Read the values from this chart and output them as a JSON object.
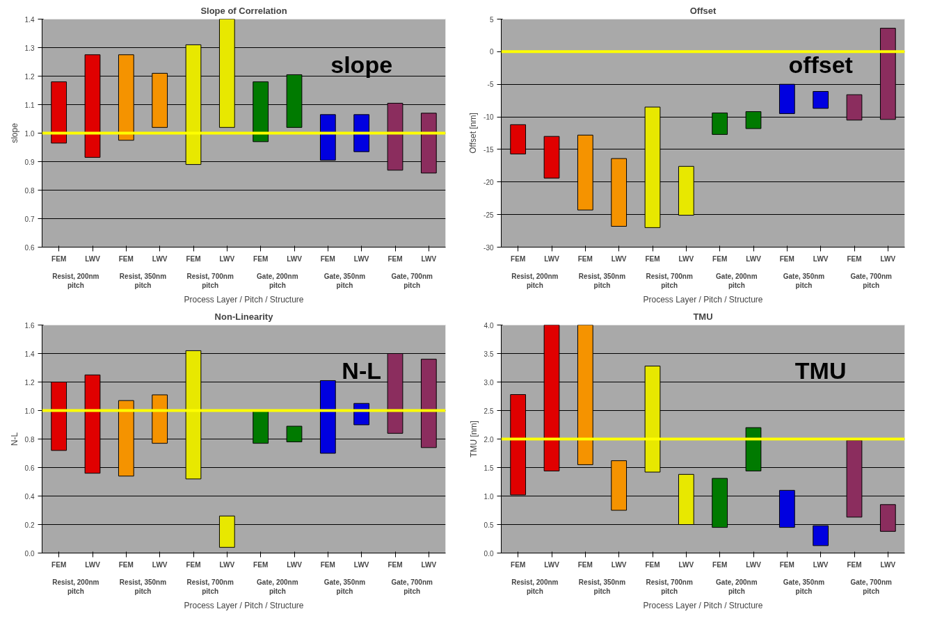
{
  "chart_data": [
    {
      "type": "bar",
      "title": "Slope of Correlation",
      "xlabel": "Process Layer / Pitch / Structure",
      "ylabel": "slope",
      "categories": [
        "FEM",
        "LWV",
        "FEM",
        "LWV",
        "FEM",
        "LWV",
        "FEM",
        "LWV",
        "FEM",
        "LWV",
        "FEM",
        "LWV"
      ],
      "base": [
        0.965,
        0.915,
        0.975,
        1.02,
        0.89,
        1.02,
        0.97,
        1.02,
        0.905,
        0.935,
        0.87,
        0.86
      ],
      "values": [
        0.215,
        0.36,
        0.3,
        0.19,
        0.42,
        0.38,
        0.21,
        0.185,
        0.16,
        0.13,
        0.235,
        0.21
      ],
      "colors": [
        "#e00000",
        "#e00000",
        "#f59300",
        "#f59300",
        "#e8e800",
        "#e8e800",
        "#007a00",
        "#007a00",
        "#0000e0",
        "#0000e0",
        "#8b2d5e",
        "#8b2d5e"
      ],
      "ylim": [
        0.6,
        1.4
      ],
      "yticks": [
        0.6,
        0.7,
        0.8,
        0.9,
        {
          "value": 1,
          "label": "1.0"
        },
        1.1,
        1.2,
        1.3,
        1.4
      ],
      "grid": "y",
      "ref_lines": [
        {
          "axis": "y",
          "value": 1,
          "color": "#ffff00"
        }
      ],
      "annotations": [
        "Resist, 200nm pitch",
        "Resist, 350nm pitch",
        "Resist, 700nm pitch",
        "Gate, 200nm pitch",
        "Gate, 350nm pitch",
        "Gate, 700nm pitch",
        "slope"
      ]
    },
    {
      "type": "bar",
      "title": "Offset",
      "xlabel": "Process Layer / Pitch / Structure",
      "ylabel": "Offset [nm]",
      "categories": [
        "FEM",
        "LWV",
        "FEM",
        "LWV",
        "FEM",
        "LWV",
        "FEM",
        "LWV",
        "FEM",
        "LWV",
        "FEM",
        "LWV"
      ],
      "base": [
        -15.7,
        -19.4,
        -24.3,
        -26.8,
        -27.0,
        -25.1,
        -12.7,
        -11.8,
        -9.5,
        -8.7,
        -10.5,
        -10.4
      ],
      "values": [
        4.5,
        6.4,
        11.5,
        10.4,
        18.5,
        7.5,
        3.3,
        2.6,
        4.5,
        2.6,
        3.9,
        14.0
      ],
      "colors": [
        "#e00000",
        "#e00000",
        "#f59300",
        "#f59300",
        "#e8e800",
        "#e8e800",
        "#007a00",
        "#007a00",
        "#0000e0",
        "#0000e0",
        "#8b2d5e",
        "#8b2d5e"
      ],
      "ylim": [
        -30,
        5
      ],
      "yticks": [
        -30,
        -25,
        -20,
        -15,
        -10,
        -5,
        0,
        5
      ],
      "grid": "y",
      "ref_lines": [
        {
          "axis": "y",
          "value": 0,
          "color": "#ffff00"
        }
      ],
      "annotations": [
        "Resist, 200nm pitch",
        "Resist, 350nm pitch",
        "Resist, 700nm pitch",
        "Gate, 200nm pitch",
        "Gate, 350nm pitch",
        "Gate, 700nm pitch",
        "offset"
      ]
    },
    {
      "type": "bar",
      "title": "Non-Linearity",
      "xlabel": "Process Layer / Pitch / Structure",
      "ylabel": "N-L",
      "categories": [
        "FEM",
        "LWV",
        "FEM",
        "LWV",
        "FEM",
        "LWV",
        "FEM",
        "LWV",
        "FEM",
        "LWV",
        "FEM",
        "LWV"
      ],
      "base": [
        0.72,
        0.56,
        0.54,
        0.77,
        0.52,
        0.04,
        0.77,
        0.78,
        0.7,
        0.9,
        0.84,
        0.74
      ],
      "values": [
        0.48,
        0.69,
        0.53,
        0.34,
        0.9,
        0.22,
        0.23,
        0.11,
        0.51,
        0.15,
        0.56,
        0.62
      ],
      "colors": [
        "#e00000",
        "#e00000",
        "#f59300",
        "#f59300",
        "#e8e800",
        "#e8e800",
        "#007a00",
        "#007a00",
        "#0000e0",
        "#0000e0",
        "#8b2d5e",
        "#8b2d5e"
      ],
      "ylim": [
        0,
        1.6
      ],
      "yticks": [
        {
          "value": 0,
          "label": "0.0"
        },
        0.2,
        0.4,
        0.6,
        0.8,
        {
          "value": 1,
          "label": "1.0"
        },
        1.2,
        1.4,
        1.6
      ],
      "grid": "y",
      "ref_lines": [
        {
          "axis": "y",
          "value": 1,
          "color": "#ffff00"
        }
      ],
      "annotations": [
        "Resist, 200nm pitch",
        "Resist, 350nm pitch",
        "Resist, 700nm pitch",
        "Gate, 200nm pitch",
        "Gate, 350nm pitch",
        "Gate, 700nm pitch",
        "N-L"
      ]
    },
    {
      "type": "bar",
      "title": "TMU",
      "xlabel": "Process Layer / Pitch / Structure",
      "ylabel": "TMU [nm]",
      "categories": [
        "FEM",
        "LWV",
        "FEM",
        "LWV",
        "FEM",
        "LWV",
        "FEM",
        "LWV",
        "FEM",
        "LWV",
        "FEM",
        "LWV"
      ],
      "base": [
        1.02,
        1.44,
        1.55,
        0.75,
        1.42,
        0.5,
        0.45,
        1.44,
        0.45,
        0.13,
        0.63,
        0.38
      ],
      "values": [
        1.76,
        2.56,
        2.45,
        0.87,
        1.86,
        0.88,
        0.86,
        0.76,
        0.65,
        0.35,
        1.35,
        0.47
      ],
      "colors": [
        "#e00000",
        "#e00000",
        "#f59300",
        "#f59300",
        "#e8e800",
        "#e8e800",
        "#007a00",
        "#007a00",
        "#0000e0",
        "#0000e0",
        "#8b2d5e",
        "#8b2d5e"
      ],
      "ylim": [
        0,
        4
      ],
      "yticks": [
        {
          "value": 0,
          "label": "0.0"
        },
        0.5,
        {
          "value": 1,
          "label": "1.0"
        },
        1.5,
        {
          "value": 2,
          "label": "2.0"
        },
        2.5,
        {
          "value": 3,
          "label": "3.0"
        },
        3.5,
        {
          "value": 4,
          "label": "4.0"
        }
      ],
      "grid": "y",
      "ref_lines": [
        {
          "axis": "y",
          "value": 2,
          "color": "#ffff00"
        }
      ],
      "annotations": [
        "Resist, 200nm pitch",
        "Resist, 350nm pitch",
        "Resist, 700nm pitch",
        "Gate, 200nm pitch",
        "Gate, 350nm pitch",
        "Gate, 700nm pitch",
        "TMU"
      ]
    }
  ]
}
